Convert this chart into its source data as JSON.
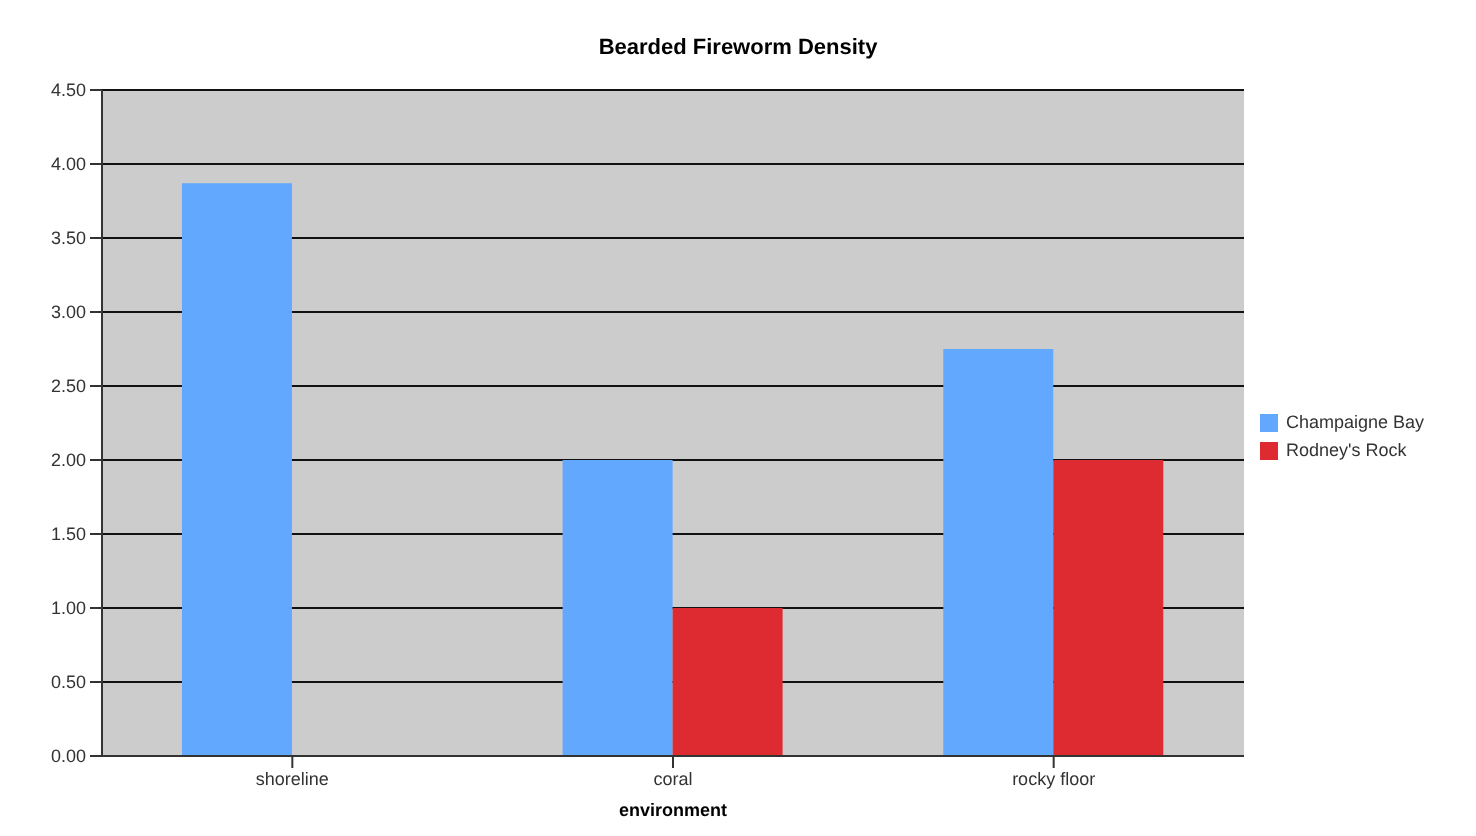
{
  "chart_data": {
    "type": "bar",
    "title": "Bearded Fireworm Density",
    "xlabel": "environment",
    "categories": [
      "shoreline",
      "coral",
      "rocky floor"
    ],
    "series": [
      {
        "name": "Champaigne Bay",
        "color": "#62a8fe",
        "values": [
          3.87,
          2.0,
          2.75
        ]
      },
      {
        "name": "Rodney's Rock",
        "color": "#dd2b31",
        "values": [
          null,
          1.0,
          2.0
        ]
      }
    ],
    "ylim": [
      0,
      4.5
    ],
    "yticks": [
      {
        "value": 0,
        "label": "0.00"
      },
      {
        "value": 0.5,
        "label": "0.50"
      },
      {
        "value": 1,
        "label": "1.00"
      },
      {
        "value": 1.5,
        "label": "1.50"
      },
      {
        "value": 2,
        "label": "2.00"
      },
      {
        "value": 2.5,
        "label": "2.50"
      },
      {
        "value": 3,
        "label": "3.00"
      },
      {
        "value": 3.5,
        "label": "3.50"
      },
      {
        "value": 4,
        "label": "4.00"
      },
      {
        "value": 4.5,
        "label": "4.50"
      }
    ],
    "grid": "y",
    "legend": "right"
  }
}
